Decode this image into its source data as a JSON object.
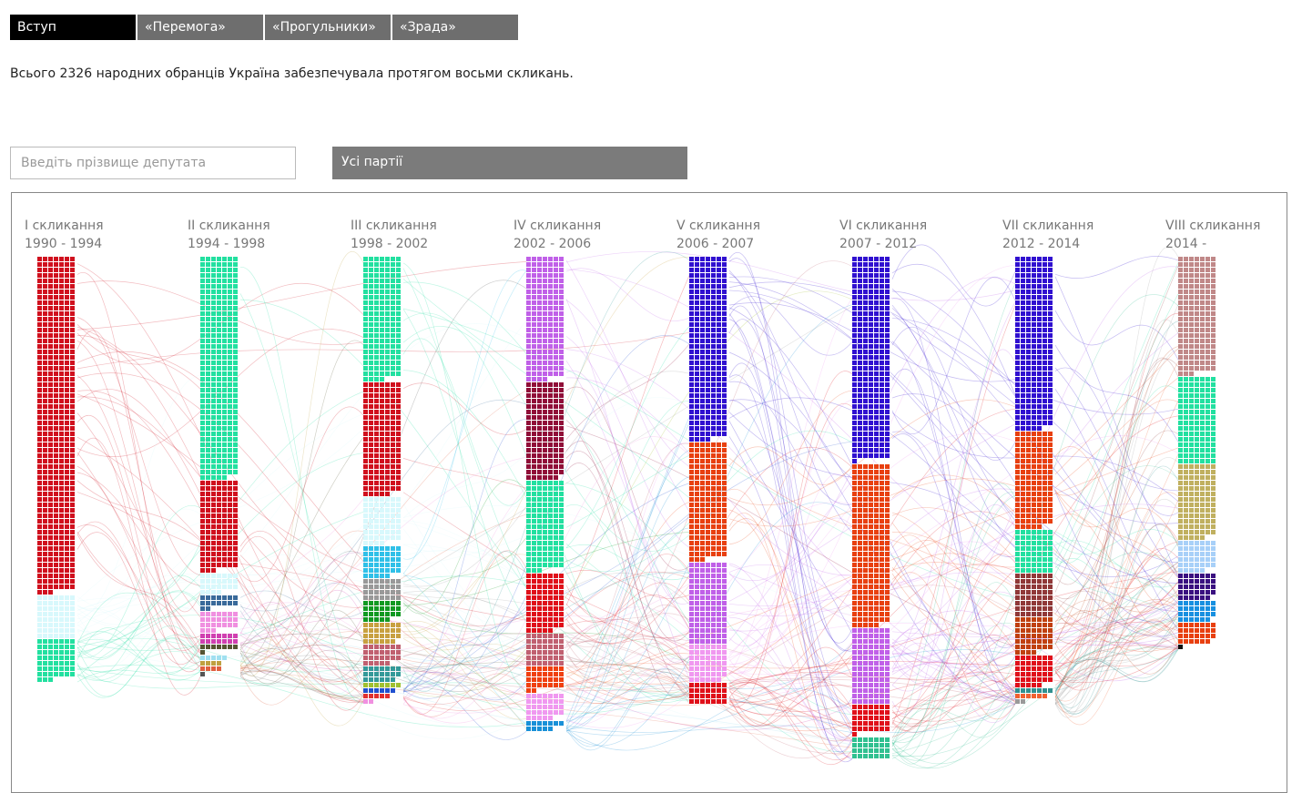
{
  "tabs": [
    "Вступ",
    "«Перемога»",
    "«Прогульники»",
    "«Зрада»"
  ],
  "intro": "Всього 2326 народних обранців Україна забезпечувала протягом восьми скликань.",
  "search_placeholder": "Введіть прізвище депутата",
  "party_filter": "Усі партії",
  "convocations": [
    {
      "label": "I скликання",
      "years": "1990 - 1994",
      "segments": [
        {
          "color": "#d0101e",
          "count": 430
        },
        {
          "color": "#d8f8fc",
          "count": 56
        },
        {
          "color": "#22e0a0",
          "count": 52
        }
      ]
    },
    {
      "label": "II скликання",
      "years": "1994 - 1998",
      "segments": [
        {
          "color": "#22e0a0",
          "count": 285
        },
        {
          "color": "#d0101e",
          "count": 115
        },
        {
          "color": "#d8f8fc",
          "count": 25
        },
        {
          "color": "#3a6a9a",
          "count": 16
        },
        {
          "color": "#f090e0",
          "count": 24
        },
        {
          "color": "#d040b0",
          "count": 14
        },
        {
          "color": "#555533",
          "count": 8
        },
        {
          "color": "#a0e0f0",
          "count": 5
        },
        {
          "color": "#c0a040",
          "count": 4
        },
        {
          "color": "#e06040",
          "count": 4
        },
        {
          "color": "#555555",
          "count": 1
        }
      ]
    },
    {
      "label": "III скликання",
      "years": "1998 - 2002",
      "segments": [
        {
          "color": "#22e0a0",
          "count": 158
        },
        {
          "color": "#d0101e",
          "count": 145
        },
        {
          "color": "#d8f8fc",
          "count": 60
        },
        {
          "color": "#30c0e8",
          "count": 40
        },
        {
          "color": "#999999",
          "count": 28
        },
        {
          "color": "#119922",
          "count": 26
        },
        {
          "color": "#c8a040",
          "count": 27
        },
        {
          "color": "#c06070",
          "count": 26
        },
        {
          "color": "#339999",
          "count": 20
        },
        {
          "color": "#a0c030",
          "count": 7
        },
        {
          "color": "#2050d0",
          "count": 6
        },
        {
          "color": "#e03030",
          "count": 5
        },
        {
          "color": "#f090e0",
          "count": 2
        }
      ]
    },
    {
      "label": "IV скликання",
      "years": "2002 - 2006",
      "segments": [
        {
          "color": "#c060e8",
          "count": 158
        },
        {
          "color": "#900e38",
          "count": 125
        },
        {
          "color": "#22e0a0",
          "count": 115
        },
        {
          "color": "#e0101a",
          "count": 75
        },
        {
          "color": "#c06070",
          "count": 42
        },
        {
          "color": "#f04010",
          "count": 30
        },
        {
          "color": "#f098f0",
          "count": 33
        },
        {
          "color": "#1890d8",
          "count": 12
        }
      ]
    },
    {
      "label": "V скликання",
      "years": "2006 - 2007",
      "segments": [
        {
          "color": "#3010d0",
          "count": 235
        },
        {
          "color": "#e84010",
          "count": 150
        },
        {
          "color": "#c060e8",
          "count": 105
        },
        {
          "color": "#f098f0",
          "count": 48
        },
        {
          "color": "#e0101a",
          "count": 28
        }
      ]
    },
    {
      "label": "VI скликання",
      "years": "2007 - 2012",
      "segments": [
        {
          "color": "#3010d0",
          "count": 260
        },
        {
          "color": "#e84010",
          "count": 208
        },
        {
          "color": "#c060e8",
          "count": 98
        },
        {
          "color": "#e0101a",
          "count": 36
        },
        {
          "color": "#30c090",
          "count": 28
        }
      ]
    },
    {
      "label": "VII скликання",
      "years": "2012 - 2014",
      "segments": [
        {
          "color": "#3010d0",
          "count": 222
        },
        {
          "color": "#e84010",
          "count": 124
        },
        {
          "color": "#22e0a0",
          "count": 56
        },
        {
          "color": "#903838",
          "count": 56
        },
        {
          "color": "#c04010",
          "count": 46
        },
        {
          "color": "#e0101a",
          "count": 40
        },
        {
          "color": "#309090",
          "count": 7
        },
        {
          "color": "#f06030",
          "count": 6
        },
        {
          "color": "#999999",
          "count": 2
        }
      ]
    },
    {
      "label": "VIII скликання",
      "years": "2014 -",
      "segments": [
        {
          "color": "#c08888",
          "count": 150
        },
        {
          "color": "#22e0a0",
          "count": 112
        },
        {
          "color": "#c0b060",
          "count": 96
        },
        {
          "color": "#a8d0f8",
          "count": 40
        },
        {
          "color": "#3a1080",
          "count": 34
        },
        {
          "color": "#1890e0",
          "count": 27
        },
        {
          "color": "#e84010",
          "count": 27
        },
        {
          "color": "#111111",
          "count": 1
        }
      ]
    }
  ]
}
